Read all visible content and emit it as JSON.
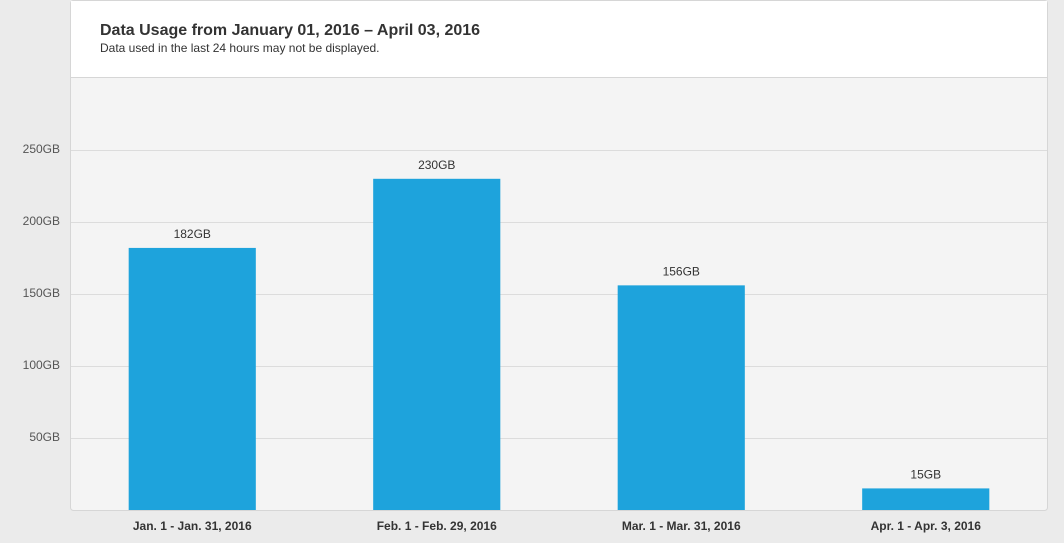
{
  "chart_data": {
    "type": "bar",
    "title": "Data Usage from January 01, 2016 – April 03, 2016",
    "subtitle": "Data used in the last 24 hours may not be displayed.",
    "categories": [
      "Jan. 1 - Jan. 31, 2016",
      "Feb. 1 - Feb. 29, 2016",
      "Mar. 1 - Mar. 31, 2016",
      "Apr. 1 - Apr. 3, 2016"
    ],
    "values": [
      182,
      230,
      156,
      15
    ],
    "value_labels": [
      "182GB",
      "230GB",
      "156GB",
      "15GB"
    ],
    "color": "#1ea3dc",
    "ylim": [
      0,
      300
    ],
    "yticks": [
      {
        "value": 50,
        "label": "50GB"
      },
      {
        "value": 100,
        "label": "100GB"
      },
      {
        "value": 150,
        "label": "150GB"
      },
      {
        "value": 200,
        "label": "200GB"
      },
      {
        "value": 250,
        "label": "250GB"
      }
    ],
    "grid": true
  }
}
